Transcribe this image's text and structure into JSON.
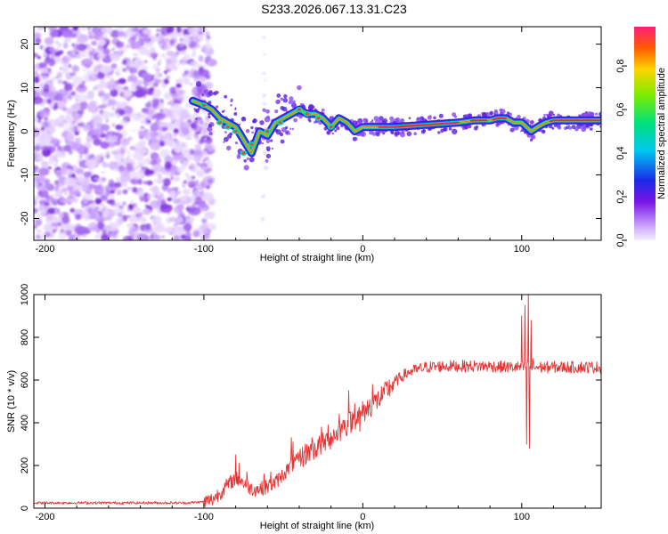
{
  "title": "S233.2026.067.13.31.C23",
  "chart_data": [
    {
      "type": "heatmap",
      "name": "spectrogram",
      "xlabel": "Height of straight line (km)",
      "ylabel": "Frequency (Hz)",
      "xlim": [
        -207,
        150
      ],
      "ylim": [
        -25,
        24
      ],
      "xticks": [
        -200,
        -100,
        0,
        100
      ],
      "yticks": [
        -20,
        -10,
        0,
        10,
        20
      ],
      "ridge": {
        "x": [
          -107,
          -100,
          -95,
          -90,
          -85,
          -80,
          -75,
          -70,
          -65,
          -60,
          -55,
          -50,
          -45,
          -40,
          -35,
          -30,
          -25,
          -20,
          -15,
          -10,
          -5,
          0,
          10,
          20,
          40,
          60,
          70,
          80,
          85,
          90,
          95,
          100,
          103,
          106,
          110,
          115,
          120,
          130,
          150
        ],
        "y": [
          7,
          6,
          5,
          3,
          2,
          1,
          -2,
          -5,
          0,
          -1,
          2,
          3,
          4,
          5,
          4,
          4,
          3,
          1,
          3,
          2,
          0,
          1,
          1,
          1,
          1.5,
          2,
          2.5,
          2.5,
          3,
          3,
          2,
          2,
          1,
          0,
          1,
          2,
          2.5,
          2.5,
          2.5
        ]
      },
      "noise_region_x": [
        -207,
        -95
      ],
      "colorbar": {
        "label": "Normalized spectral amplitude",
        "ticks": [
          0.0,
          0.2,
          0.4,
          0.6,
          0.8
        ],
        "tick_labels": [
          "0.0",
          "0.2",
          "0.4",
          "0.6",
          "0.8"
        ],
        "range": [
          0,
          0.98
        ]
      }
    },
    {
      "type": "line",
      "name": "snr",
      "xlabel": "Height of straight line (km)",
      "ylabel": "SNR (10 * v/v)",
      "xlim": [
        -207,
        150
      ],
      "ylim": [
        0,
        1000
      ],
      "xticks": [
        -200,
        -100,
        0,
        100
      ],
      "yticks": [
        0,
        200,
        400,
        600,
        800,
        1000
      ],
      "color": "#e83030",
      "trend": {
        "x": [
          -207,
          -110,
          -100,
          -95,
          -90,
          -85,
          -80,
          -75,
          -70,
          -65,
          -60,
          -55,
          -50,
          -45,
          -40,
          -35,
          -30,
          -25,
          -20,
          -15,
          -10,
          -5,
          0,
          5,
          10,
          15,
          20,
          25,
          30,
          40,
          50,
          60,
          70,
          80,
          90,
          100,
          110,
          120,
          130,
          150
        ],
        "y": [
          25,
          25,
          30,
          40,
          70,
          110,
          140,
          120,
          90,
          90,
          100,
          120,
          160,
          200,
          230,
          260,
          280,
          300,
          330,
          360,
          390,
          420,
          450,
          480,
          510,
          550,
          590,
          620,
          640,
          660,
          665,
          665,
          665,
          665,
          660,
          660,
          660,
          660,
          660,
          660
        ]
      },
      "spikes": [
        {
          "x": -80,
          "y": 250
        },
        {
          "x": -78,
          "y": 210
        },
        {
          "x": -73,
          "y": 170
        },
        {
          "x": -62,
          "y": 160
        },
        {
          "x": -58,
          "y": 170
        },
        {
          "x": -45,
          "y": 330
        },
        {
          "x": -44,
          "y": 310
        },
        {
          "x": -32,
          "y": 330
        },
        {
          "x": -26,
          "y": 380
        },
        {
          "x": -22,
          "y": 390
        },
        {
          "x": -15,
          "y": 440
        },
        {
          "x": -12,
          "y": 410
        },
        {
          "x": -9,
          "y": 550
        },
        {
          "x": -5,
          "y": 490
        },
        {
          "x": -2,
          "y": 360
        },
        {
          "x": 6,
          "y": 580
        },
        {
          "x": 10,
          "y": 500
        },
        {
          "x": 13,
          "y": 560
        },
        {
          "x": 100,
          "y": 900
        },
        {
          "x": 102,
          "y": 950
        },
        {
          "x": 103,
          "y": 300
        },
        {
          "x": 104,
          "y": 1000
        },
        {
          "x": 105,
          "y": 280
        },
        {
          "x": 106,
          "y": 880
        },
        {
          "x": 107,
          "y": 700
        }
      ]
    }
  ]
}
